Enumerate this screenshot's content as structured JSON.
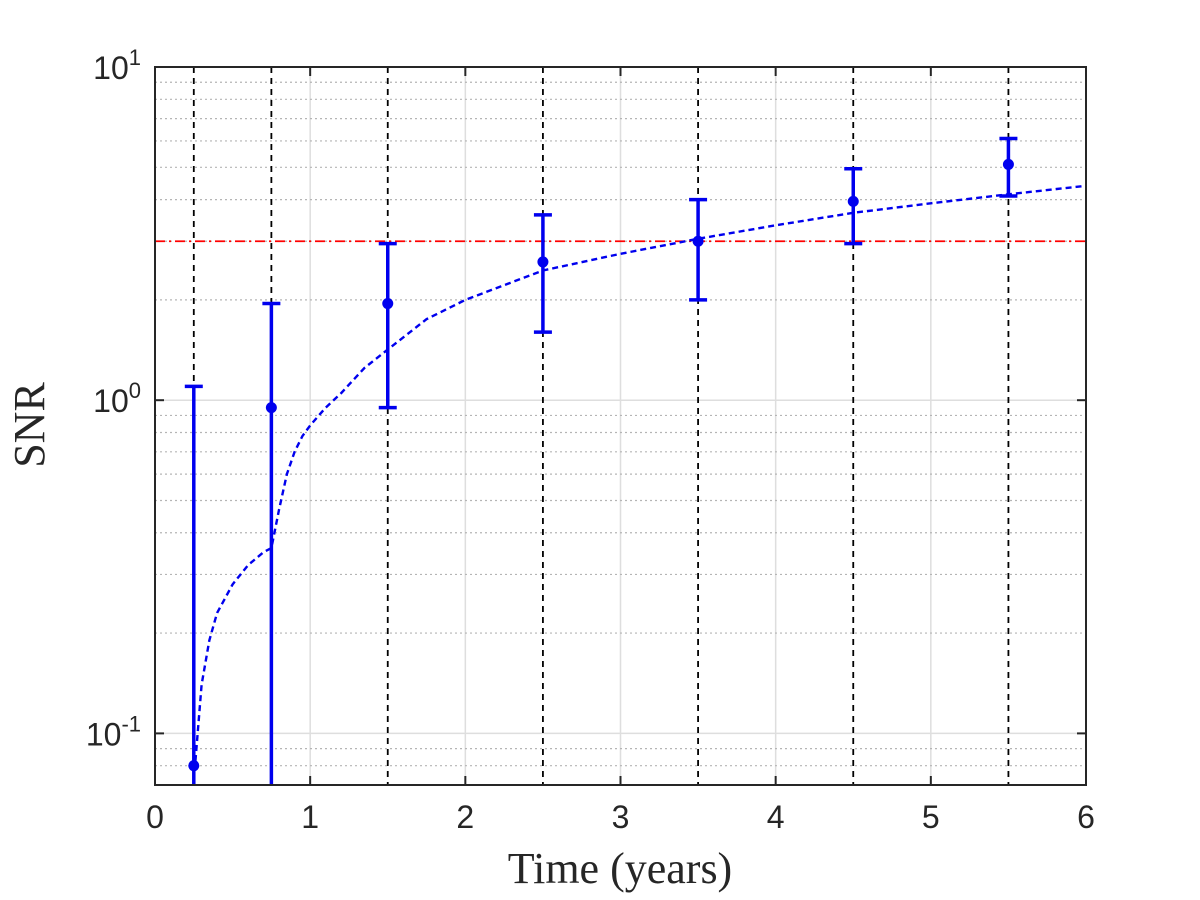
{
  "chart_data": {
    "type": "scatter",
    "title": "",
    "xlabel": "Time (years)",
    "ylabel": "SNR",
    "xlim": [
      0,
      6
    ],
    "ylim": [
      0.07,
      10
    ],
    "yscale": "log",
    "grid": true,
    "x_ticks": [
      {
        "value": 0,
        "label": "0"
      },
      {
        "value": 1,
        "label": "1"
      },
      {
        "value": 2,
        "label": "2"
      },
      {
        "value": 3,
        "label": "3"
      },
      {
        "value": 4,
        "label": "4"
      },
      {
        "value": 5,
        "label": "5"
      },
      {
        "value": 6,
        "label": "6"
      }
    ],
    "y_ticks": [
      {
        "value": 0.1,
        "base": "10",
        "exp": "-1"
      },
      {
        "value": 1,
        "base": "10",
        "exp": "0"
      },
      {
        "value": 10,
        "base": "10",
        "exp": "1"
      }
    ],
    "vertical_markers": [
      0.25,
      0.75,
      1.5,
      2.5,
      3.5,
      4.5,
      5.5
    ],
    "threshold": 3,
    "series": [
      {
        "kind": "errorbar",
        "color": "#0000ee",
        "points": [
          {
            "x": 0.25,
            "y": 0.08,
            "lower": 0.07,
            "upper": 1.1
          },
          {
            "x": 0.75,
            "y": 0.95,
            "lower": 0.07,
            "upper": 1.95
          },
          {
            "x": 1.5,
            "y": 1.95,
            "lower": 0.95,
            "upper": 2.95
          },
          {
            "x": 2.5,
            "y": 2.6,
            "lower": 1.6,
            "upper": 3.6
          },
          {
            "x": 3.5,
            "y": 3.0,
            "lower": 2.0,
            "upper": 4.0
          },
          {
            "x": 4.5,
            "y": 3.95,
            "lower": 2.95,
            "upper": 4.95
          },
          {
            "x": 5.5,
            "y": 5.1,
            "lower": 4.1,
            "upper": 6.1
          }
        ]
      },
      {
        "kind": "fit-line",
        "color": "#0000ee",
        "x": [
          0.25,
          0.3,
          0.35,
          0.4,
          0.5,
          0.6,
          0.7,
          0.75,
          0.8,
          0.85,
          0.9,
          0.95,
          1.0,
          1.1,
          1.2,
          1.35,
          1.5,
          1.75,
          2.0,
          2.5,
          3.0,
          3.5,
          4.0,
          4.5,
          5.0,
          5.5,
          6.0
        ],
        "y": [
          0.072,
          0.14,
          0.19,
          0.23,
          0.28,
          0.32,
          0.35,
          0.36,
          0.47,
          0.6,
          0.7,
          0.78,
          0.84,
          0.95,
          1.05,
          1.25,
          1.42,
          1.75,
          2.0,
          2.45,
          2.75,
          3.05,
          3.35,
          3.65,
          3.9,
          4.15,
          4.4
        ]
      }
    ],
    "colors": {
      "data": "#0000ee",
      "threshold": "#ff0000",
      "markers": "#000000",
      "grid_major": "#dedede",
      "grid_minor": "#b5b5b5",
      "axes": "#262626"
    }
  }
}
